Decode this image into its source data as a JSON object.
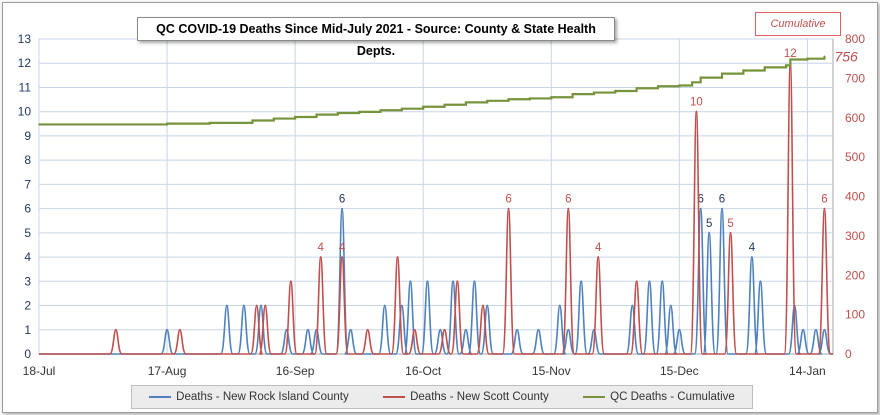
{
  "chart_data": {
    "type": "line",
    "title": "QC COVID-19 Deaths Since Mid-July 2021 - Source: County & State Health Depts.",
    "cumulative_box_label": "Cumulative",
    "cumulative_final_label": "756",
    "x_tick_labels": [
      "18-Jul",
      "17-Aug",
      "16-Sep",
      "16-Oct",
      "15-Nov",
      "15-Dec",
      "14-Jan"
    ],
    "x_tick_days": [
      0,
      30,
      60,
      90,
      120,
      150,
      180
    ],
    "x_range_days": [
      0,
      186
    ],
    "y_left_ticks": [
      0,
      1,
      2,
      3,
      4,
      5,
      6,
      7,
      8,
      9,
      10,
      11,
      12,
      13
    ],
    "y_left_range": [
      0,
      13
    ],
    "y_right_ticks": [
      0,
      100,
      200,
      300,
      400,
      500,
      600,
      700,
      800
    ],
    "y_right_range": [
      0,
      800
    ],
    "grid": true,
    "legend_position": "bottom",
    "colors": {
      "rock_island": "#4f81bd",
      "scott": "#c0504d",
      "cumulative": "#77933c",
      "left_axis": "#1f3864",
      "right_axis": "#c0504d",
      "grid": "#c8d4e8"
    },
    "series": [
      {
        "name": "Deaths - New Rock Island County",
        "axis": "left",
        "color": "#4f81bd",
        "spikes": [
          {
            "day": 30,
            "value": 1
          },
          {
            "day": 44,
            "value": 2
          },
          {
            "day": 48,
            "value": 2
          },
          {
            "day": 52,
            "value": 2
          },
          {
            "day": 58,
            "value": 1
          },
          {
            "day": 63,
            "value": 1
          },
          {
            "day": 65,
            "value": 1
          },
          {
            "day": 71,
            "value": 6,
            "label": "6"
          },
          {
            "day": 73,
            "value": 1
          },
          {
            "day": 81,
            "value": 2
          },
          {
            "day": 85,
            "value": 2
          },
          {
            "day": 87,
            "value": 3
          },
          {
            "day": 91,
            "value": 3
          },
          {
            "day": 94,
            "value": 1
          },
          {
            "day": 97,
            "value": 3
          },
          {
            "day": 100,
            "value": 1
          },
          {
            "day": 102,
            "value": 3
          },
          {
            "day": 105,
            "value": 2
          },
          {
            "day": 112,
            "value": 1
          },
          {
            "day": 117,
            "value": 1
          },
          {
            "day": 122,
            "value": 2
          },
          {
            "day": 124,
            "value": 1
          },
          {
            "day": 127,
            "value": 3
          },
          {
            "day": 130,
            "value": 1
          },
          {
            "day": 139,
            "value": 2
          },
          {
            "day": 143,
            "value": 3
          },
          {
            "day": 146,
            "value": 3
          },
          {
            "day": 148,
            "value": 2
          },
          {
            "day": 150,
            "value": 1
          },
          {
            "day": 155,
            "value": 6,
            "label": "6"
          },
          {
            "day": 157,
            "value": 5,
            "label": "5"
          },
          {
            "day": 160,
            "value": 6,
            "label": "6"
          },
          {
            "day": 167,
            "value": 4,
            "label": "4"
          },
          {
            "day": 169,
            "value": 3
          },
          {
            "day": 177,
            "value": 2
          },
          {
            "day": 179,
            "value": 1
          },
          {
            "day": 182,
            "value": 1
          },
          {
            "day": 184,
            "value": 1
          }
        ]
      },
      {
        "name": "Deaths - New Scott County",
        "axis": "left",
        "color": "#c0504d",
        "spikes": [
          {
            "day": 18,
            "value": 1
          },
          {
            "day": 33,
            "value": 1
          },
          {
            "day": 51,
            "value": 2
          },
          {
            "day": 53,
            "value": 2
          },
          {
            "day": 59,
            "value": 3
          },
          {
            "day": 66,
            "value": 4,
            "label": "4"
          },
          {
            "day": 71,
            "value": 4,
            "label": "4"
          },
          {
            "day": 77,
            "value": 1
          },
          {
            "day": 84,
            "value": 4
          },
          {
            "day": 88,
            "value": 1
          },
          {
            "day": 95,
            "value": 1
          },
          {
            "day": 98,
            "value": 3
          },
          {
            "day": 104,
            "value": 2
          },
          {
            "day": 110,
            "value": 6,
            "label": "6"
          },
          {
            "day": 124,
            "value": 6,
            "label": "6"
          },
          {
            "day": 131,
            "value": 4,
            "label": "4"
          },
          {
            "day": 140,
            "value": 3
          },
          {
            "day": 154,
            "value": 10,
            "label": "10"
          },
          {
            "day": 162,
            "value": 5,
            "label": "5"
          },
          {
            "day": 176,
            "value": 12,
            "label": "12"
          },
          {
            "day": 184,
            "value": 6,
            "label": "6"
          }
        ]
      },
      {
        "name": "QC Deaths - Cumulative",
        "axis": "right",
        "color": "#77933c",
        "points": [
          [
            0,
            583
          ],
          [
            10,
            583
          ],
          [
            20,
            583
          ],
          [
            30,
            585
          ],
          [
            40,
            587
          ],
          [
            50,
            593
          ],
          [
            55,
            598
          ],
          [
            60,
            602
          ],
          [
            65,
            608
          ],
          [
            70,
            612
          ],
          [
            75,
            615
          ],
          [
            80,
            619
          ],
          [
            85,
            623
          ],
          [
            90,
            628
          ],
          [
            95,
            633
          ],
          [
            100,
            639
          ],
          [
            105,
            643
          ],
          [
            110,
            647
          ],
          [
            115,
            649
          ],
          [
            120,
            652
          ],
          [
            125,
            660
          ],
          [
            130,
            664
          ],
          [
            135,
            668
          ],
          [
            140,
            675
          ],
          [
            145,
            680
          ],
          [
            150,
            682
          ],
          [
            153,
            690
          ],
          [
            155,
            702
          ],
          [
            160,
            712
          ],
          [
            165,
            720
          ],
          [
            170,
            728
          ],
          [
            175,
            733
          ],
          [
            176,
            748
          ],
          [
            180,
            750
          ],
          [
            184,
            756
          ]
        ]
      }
    ]
  }
}
